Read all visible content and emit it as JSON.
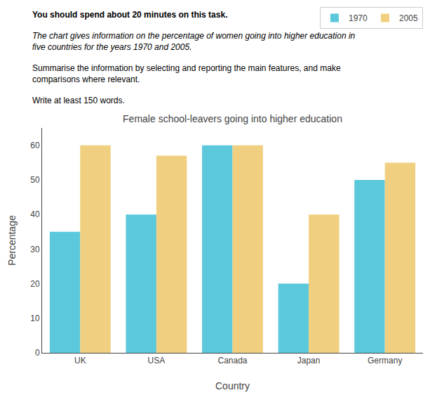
{
  "chart_data": {
    "type": "bar",
    "title": "Female school-leavers going into higher education",
    "annotations": [
      "You should spend about 20 minutes on this task.",
      "The chart gives information on the percentage of women going into higher education in\nfive countries for the years 1970 and 2005.",
      "Summarise the information by selecting and reporting the main features, and make\ncomparisons where relevant.",
      "Write at least 150 words."
    ],
    "xlabel": "Country",
    "ylabel": "Percentage",
    "categories": [
      "UK",
      "USA",
      "Canada",
      "Japan",
      "Germany"
    ],
    "series": [
      {
        "name": "1970",
        "color": "#5BC8DC",
        "values": [
          35,
          40,
          60,
          20,
          50
        ]
      },
      {
        "name": "2005",
        "color": "#F0D080",
        "values": [
          60,
          57,
          60,
          40,
          55
        ]
      }
    ],
    "ylim": [
      0,
      65
    ],
    "yticks": [
      0,
      10,
      20,
      30,
      40,
      50,
      60
    ],
    "grid": false,
    "legend": "upper right"
  }
}
